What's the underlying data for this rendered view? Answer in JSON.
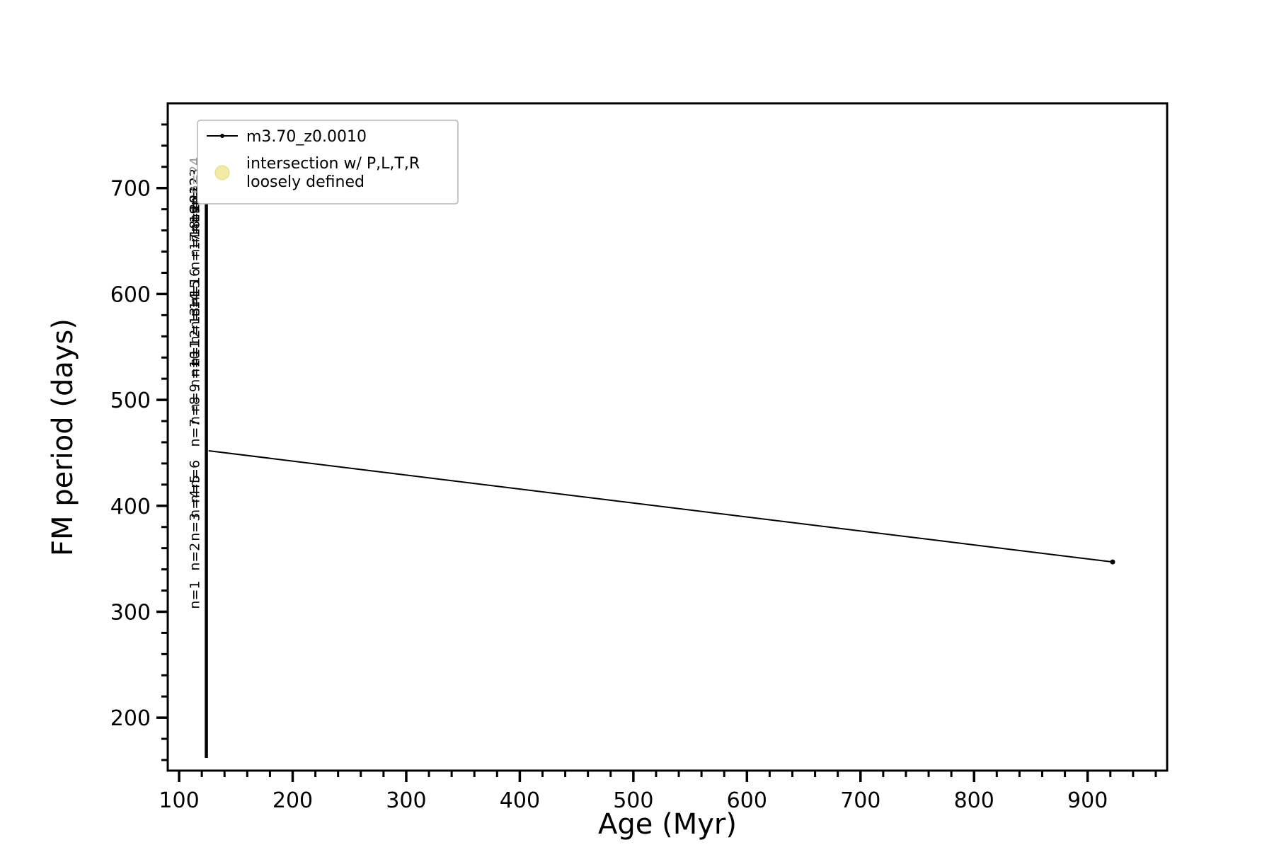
{
  "chart_data": {
    "type": "line",
    "title": "",
    "xlabel": "Age (Myr)",
    "ylabel": "FM period (days)",
    "xlim": [
      90,
      970
    ],
    "ylim": [
      150,
      780
    ],
    "x_major_ticks": [
      100,
      200,
      300,
      400,
      500,
      600,
      700,
      800,
      900
    ],
    "y_major_ticks": [
      200,
      300,
      400,
      500,
      600,
      700
    ],
    "x_minor_step": 20,
    "y_minor_step": 20,
    "grid": false,
    "legend": {
      "position": "upper-left",
      "entries": [
        {
          "marker": "line-dot",
          "color": "#000000",
          "label": "m3.70_z0.0010"
        },
        {
          "marker": "circle",
          "color": "#f0e895",
          "label": "intersection w/ P,L,T,R\nloosely defined"
        }
      ]
    },
    "series": [
      {
        "name": "m3.70_z0.0010",
        "color": "#000000",
        "points": [
          [
            126,
            452
          ],
          [
            922,
            347
          ]
        ],
        "end_marker": true,
        "vertical_track": {
          "age": 124,
          "period_min": 162,
          "period_max": 718
        }
      }
    ],
    "annotations": [
      {
        "label": "n=1",
        "period": 316
      },
      {
        "label": "n=2",
        "period": 352
      },
      {
        "label": "n=3",
        "period": 380
      },
      {
        "label": "n=4",
        "period": 402
      },
      {
        "label": "n=5",
        "period": 416
      },
      {
        "label": "n=6",
        "period": 430
      },
      {
        "label": "n=7",
        "period": 469
      },
      {
        "label": "n=8",
        "period": 490
      },
      {
        "label": "n=9",
        "period": 502
      },
      {
        "label": "n=10",
        "period": 529
      },
      {
        "label": "n=11",
        "period": 539
      },
      {
        "label": "n=12",
        "period": 549
      },
      {
        "label": "n=13",
        "period": 570
      },
      {
        "label": "n=14",
        "period": 584
      },
      {
        "label": "n=15",
        "period": 596
      },
      {
        "label": "n=16",
        "period": 607
      },
      {
        "label": "n=17",
        "period": 640
      },
      {
        "label": "n=18",
        "period": 652
      },
      {
        "label": "n=19",
        "period": 666
      },
      {
        "label": "n=20",
        "period": 676
      },
      {
        "label": "n=21",
        "period": 685
      },
      {
        "label": "n=22",
        "period": 693
      },
      {
        "label": "n=23",
        "period": 701
      },
      {
        "label": "p=24",
        "period": 712,
        "color": "#999999"
      }
    ],
    "colors": {
      "axes": "#000000",
      "series": "#000000",
      "intersection_marker": "#f0e895",
      "background": "#ffffff"
    }
  }
}
